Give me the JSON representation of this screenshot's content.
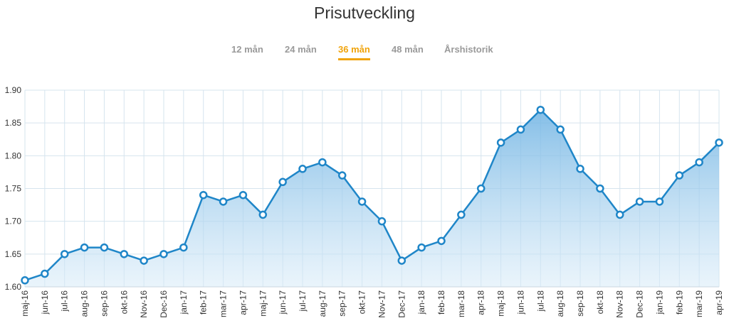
{
  "header": {
    "title": "Prisutveckling"
  },
  "tabs": [
    {
      "label": "12 mån",
      "active": false
    },
    {
      "label": "24 mån",
      "active": false
    },
    {
      "label": "36 mån",
      "active": true
    },
    {
      "label": "48 mån",
      "active": false
    },
    {
      "label": "Årshistorik",
      "active": false
    }
  ],
  "colors": {
    "line": "#1f86c8",
    "accent_tab": "#f0a30a",
    "grid": "#d6e4ee"
  },
  "chart_data": {
    "type": "area",
    "title": "Prisutveckling",
    "xlabel": "",
    "ylabel": "",
    "ylim": [
      1.6,
      1.9
    ],
    "yticks": [
      "1.60",
      "1.65",
      "1.70",
      "1.75",
      "1.80",
      "1.85",
      "1.90"
    ],
    "grid": true,
    "categories": [
      "maj-16",
      "jun-16",
      "jul-16",
      "aug-16",
      "sep-16",
      "okt-16",
      "Nov-16",
      "Dec-16",
      "jan-17",
      "feb-17",
      "mar-17",
      "apr-17",
      "maj-17",
      "jun-17",
      "jul-17",
      "aug-17",
      "sep-17",
      "okt-17",
      "Nov-17",
      "Dec-17",
      "jan-18",
      "feb-18",
      "mar-18",
      "apr-18",
      "maj-18",
      "jun-18",
      "jul-18",
      "aug-18",
      "sep-18",
      "okt-18",
      "Nov-18",
      "Dec-18",
      "jan-19",
      "feb-19",
      "mar-19",
      "apr-19"
    ],
    "series": [
      {
        "values": [
          1.61,
          1.62,
          1.65,
          1.66,
          1.66,
          1.65,
          1.64,
          1.65,
          1.66,
          1.74,
          1.73,
          1.74,
          1.71,
          1.76,
          1.78,
          1.79,
          1.77,
          1.73,
          1.7,
          1.64,
          1.66,
          1.67,
          1.71,
          1.75,
          1.82,
          1.84,
          1.87,
          1.84,
          1.78,
          1.75,
          1.71,
          1.73,
          1.73,
          1.77,
          1.79,
          1.82
        ]
      }
    ]
  }
}
